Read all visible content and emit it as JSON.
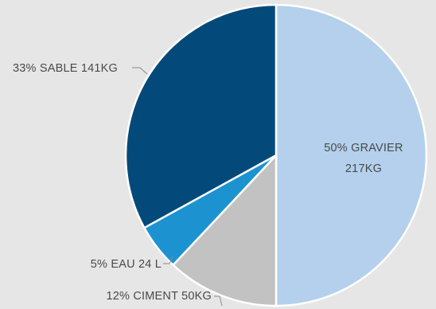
{
  "chart_data": {
    "type": "pie",
    "slices": [
      {
        "name": "GRAVIER",
        "value": 50,
        "percent_label": "50% GRAVIER",
        "amount_label": "217KG",
        "color": "#b4d0ec"
      },
      {
        "name": "CIMENT",
        "value": 12,
        "label": "12% CIMENT 50KG",
        "color": "#c2c2c2"
      },
      {
        "name": "EAU",
        "value": 5,
        "label": "5% EAU 24 L",
        "color": "#1c93d0"
      },
      {
        "name": "SABLE",
        "value": 33,
        "label": "33% SABLE 141KG",
        "color": "#034a7a"
      }
    ],
    "background": "#e6e6e6",
    "legend": "none"
  }
}
